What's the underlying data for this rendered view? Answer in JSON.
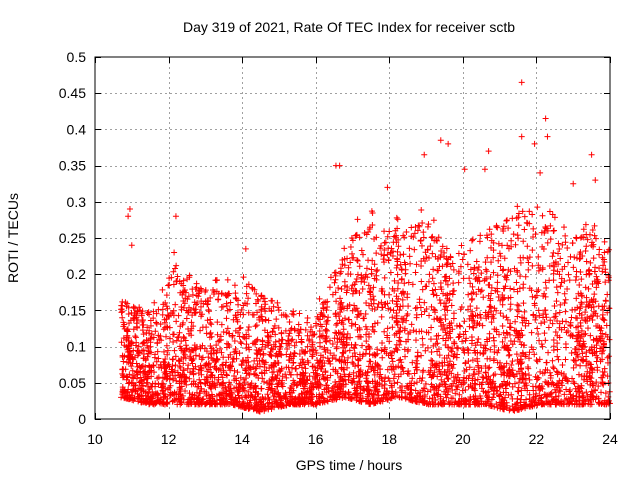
{
  "chart_data": {
    "type": "scatter",
    "title": "Day 319 of 2021, Rate Of TEC Index for receiver sctb",
    "xlabel": "GPS time / hours",
    "ylabel": "ROTI / TECUs",
    "xlim": [
      10,
      24
    ],
    "ylim": [
      0,
      0.5
    ],
    "xticks": [
      "10",
      "12",
      "14",
      "16",
      "18",
      "20",
      "22",
      "24"
    ],
    "yticks": [
      "0",
      "0.05",
      "0.1",
      "0.15",
      "0.2",
      "0.25",
      "0.3",
      "0.35",
      "0.4",
      "0.45",
      "0.5"
    ],
    "xtick_values": [
      10,
      12,
      14,
      16,
      18,
      20,
      22,
      24
    ],
    "ytick_values": [
      0,
      0.05,
      0.1,
      0.15,
      0.2,
      0.25,
      0.3,
      0.35,
      0.4,
      0.45,
      0.5
    ],
    "grid": true,
    "marker": "plus",
    "color": "#ff0000",
    "series": [
      {
        "name": "ROTI",
        "data_x_range": [
          10.7,
          24.0
        ],
        "notable_points": [
          {
            "x": 10.95,
            "y": 0.29
          },
          {
            "x": 10.9,
            "y": 0.28
          },
          {
            "x": 11.0,
            "y": 0.24
          },
          {
            "x": 12.2,
            "y": 0.28
          },
          {
            "x": 12.15,
            "y": 0.23
          },
          {
            "x": 14.1,
            "y": 0.235
          },
          {
            "x": 16.55,
            "y": 0.35
          },
          {
            "x": 16.65,
            "y": 0.35
          },
          {
            "x": 17.95,
            "y": 0.32
          },
          {
            "x": 18.95,
            "y": 0.365
          },
          {
            "x": 19.4,
            "y": 0.385
          },
          {
            "x": 19.6,
            "y": 0.38
          },
          {
            "x": 20.05,
            "y": 0.345
          },
          {
            "x": 20.7,
            "y": 0.37
          },
          {
            "x": 20.6,
            "y": 0.345
          },
          {
            "x": 21.6,
            "y": 0.465
          },
          {
            "x": 21.6,
            "y": 0.39
          },
          {
            "x": 21.95,
            "y": 0.38
          },
          {
            "x": 22.25,
            "y": 0.415
          },
          {
            "x": 22.3,
            "y": 0.39
          },
          {
            "x": 22.1,
            "y": 0.34
          },
          {
            "x": 23.5,
            "y": 0.365
          },
          {
            "x": 23.6,
            "y": 0.33
          },
          {
            "x": 23.0,
            "y": 0.325
          }
        ],
        "density_profile": [
          {
            "x": 10.7,
            "ylow": 0.03,
            "yhigh": 0.17
          },
          {
            "x": 11.5,
            "ylow": 0.02,
            "yhigh": 0.15
          },
          {
            "x": 12.2,
            "ylow": 0.02,
            "yhigh": 0.22
          },
          {
            "x": 13.0,
            "ylow": 0.02,
            "yhigh": 0.18
          },
          {
            "x": 13.7,
            "ylow": 0.02,
            "yhigh": 0.21
          },
          {
            "x": 14.5,
            "ylow": 0.01,
            "yhigh": 0.18
          },
          {
            "x": 15.3,
            "ylow": 0.02,
            "yhigh": 0.15
          },
          {
            "x": 16.0,
            "ylow": 0.02,
            "yhigh": 0.14
          },
          {
            "x": 16.8,
            "ylow": 0.03,
            "yhigh": 0.25
          },
          {
            "x": 17.5,
            "ylow": 0.02,
            "yhigh": 0.27
          },
          {
            "x": 18.3,
            "ylow": 0.03,
            "yhigh": 0.27
          },
          {
            "x": 19.0,
            "ylow": 0.02,
            "yhigh": 0.29
          },
          {
            "x": 19.8,
            "ylow": 0.02,
            "yhigh": 0.24
          },
          {
            "x": 20.6,
            "ylow": 0.02,
            "yhigh": 0.27
          },
          {
            "x": 21.3,
            "ylow": 0.01,
            "yhigh": 0.28
          },
          {
            "x": 22.1,
            "ylow": 0.02,
            "yhigh": 0.3
          },
          {
            "x": 22.9,
            "ylow": 0.02,
            "yhigh": 0.26
          },
          {
            "x": 23.5,
            "ylow": 0.02,
            "yhigh": 0.28
          },
          {
            "x": 24.0,
            "ylow": 0.02,
            "yhigh": 0.24
          }
        ]
      }
    ]
  }
}
